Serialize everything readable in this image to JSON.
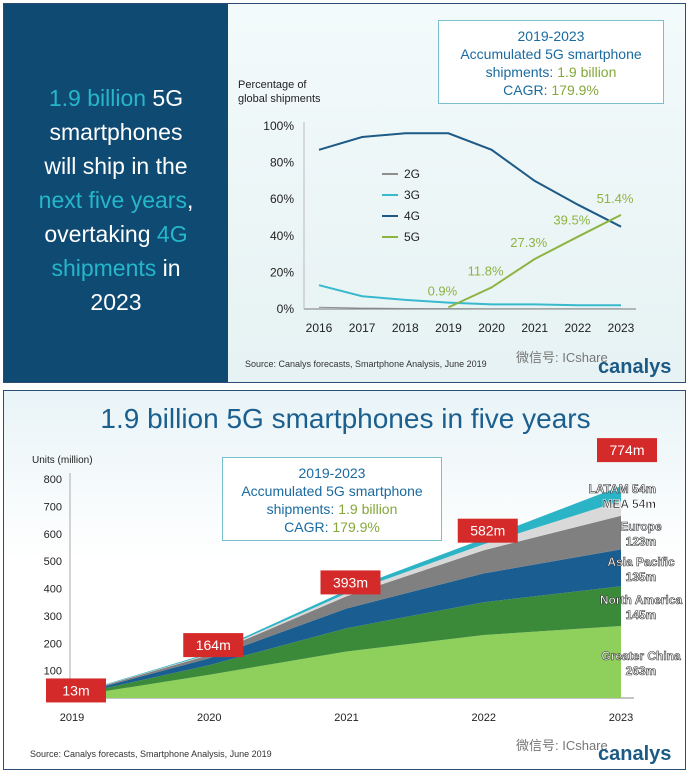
{
  "top": {
    "headline": {
      "line1_hl": "1.9 billion",
      "line1_rest": " 5G",
      "line2": "smartphones",
      "line3": "will ship in the",
      "line4_hl": "next five years",
      "line4_rest": ",",
      "line5_pre": "overtaking ",
      "line5_hl": "4G",
      "line6_hl": "shipments",
      "line6_rest": " in",
      "line7": "2023"
    },
    "callout": {
      "line1": "2019-2023",
      "line2": "Accumulated 5G smartphone",
      "line3_label": "shipments: ",
      "line3_value": "1.9 billion",
      "line4_label": "CAGR: ",
      "line4_value": "179.9%"
    },
    "source": "Source: Canalys forecasts, Smartphone Analysis, June 2019",
    "logo": "canalys",
    "watermark": "微信号: ICshare"
  },
  "bottom": {
    "title": "1.9 billion 5G smartphones in five years",
    "callout": {
      "line1": "2019-2023",
      "line2": "Accumulated 5G smartphone",
      "line3_label": "shipments: ",
      "line3_value": "1.9 billion",
      "line4_label": "CAGR: ",
      "line4_value": "179.9%"
    },
    "source": "Source: Canalys forecasts, Smartphone Analysis, June 2019",
    "logo": "canalys",
    "watermark": "微信号: ICshare"
  },
  "colors": {
    "navy": "#0f4a73",
    "cyan": "#25b7c9",
    "green": "#8db443",
    "4g_line": "#1d5a86",
    "3g_line": "#39b9cd",
    "2g_line": "#8e8e8e",
    "red_label": "#d42a2a"
  },
  "chart_data": [
    {
      "type": "line",
      "ylabel": "Percentage of global shipments",
      "x": [
        2016,
        2017,
        2018,
        2019,
        2020,
        2021,
        2022,
        2023
      ],
      "ylim": [
        0,
        100
      ],
      "yticks": [
        "0%",
        "20%",
        "40%",
        "60%",
        "80%",
        "100%"
      ],
      "legend_position": "center-left",
      "series": [
        {
          "name": "2G",
          "values": [
            1,
            0.5,
            0.3,
            0.2,
            0.1,
            0.1,
            0.1,
            0.1
          ]
        },
        {
          "name": "3G",
          "values": [
            13,
            7,
            5,
            3.5,
            2.5,
            2.5,
            2,
            2
          ]
        },
        {
          "name": "4G",
          "values": [
            87,
            94,
            96,
            96,
            87,
            70,
            57,
            45
          ]
        },
        {
          "name": "5G",
          "values": [
            null,
            null,
            null,
            0.9,
            11.8,
            27.3,
            39.5,
            51.4
          ]
        }
      ],
      "data_labels_5g": [
        "0.9%",
        "11.8%",
        "27.3%",
        "39.5%",
        "51.4%"
      ]
    },
    {
      "type": "area",
      "ylabel": "Units (million)",
      "x": [
        2019,
        2020,
        2021,
        2022,
        2023
      ],
      "ylim": [
        0,
        800
      ],
      "yticks": [
        0,
        100,
        200,
        300,
        400,
        500,
        600,
        700,
        800
      ],
      "totals": [
        13,
        164,
        393,
        582,
        774
      ],
      "total_labels": [
        "13m",
        "164m",
        "393m",
        "582m",
        "774m"
      ],
      "series": [
        {
          "name": "Greater China",
          "label": "263m",
          "values": [
            6,
            85,
            170,
            230,
            263
          ],
          "color": "#8fcf5c"
        },
        {
          "name": "North America",
          "label": "145m",
          "values": [
            3,
            35,
            85,
            120,
            145
          ],
          "color": "#3b8a3a"
        },
        {
          "name": "Asia Pacific",
          "label": "135m",
          "values": [
            2,
            25,
            72,
            105,
            135
          ],
          "color": "#1a5e91"
        },
        {
          "name": "Europe",
          "label": "123m",
          "values": [
            1,
            12,
            45,
            85,
            123
          ],
          "color": "#808080"
        },
        {
          "name": "MEA",
          "label": "54m",
          "values": [
            0.5,
            3,
            10,
            22,
            54
          ],
          "color": "#d9d9d9"
        },
        {
          "name": "LATAM",
          "label": "54m",
          "values": [
            0.5,
            4,
            11,
            20,
            54
          ],
          "color": "#2bb3c6"
        }
      ]
    }
  ]
}
